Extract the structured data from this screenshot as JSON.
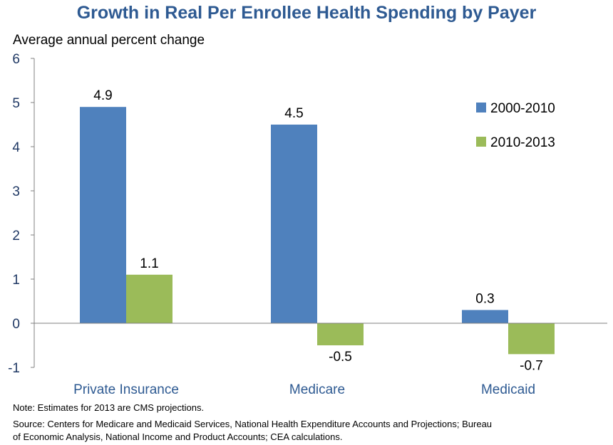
{
  "chart_data": {
    "type": "bar",
    "title": "Growth in Real Per Enrollee Health Spending by Payer",
    "ylabel": "Average annual percent change",
    "xlabel": "",
    "categories": [
      "Private Insurance",
      "Medicare",
      "Medicaid"
    ],
    "series": [
      {
        "name": "2000-2010",
        "color": "#4f81bd",
        "values": [
          4.9,
          4.5,
          0.3
        ],
        "labels": [
          "4.9",
          "4.5",
          "0.3"
        ]
      },
      {
        "name": "2010-2013",
        "color": "#9bbb59",
        "values": [
          1.1,
          -0.5,
          -0.7
        ],
        "labels": [
          "1.1",
          "-0.5",
          "-0.7"
        ]
      }
    ],
    "ylim": [
      -1,
      6
    ],
    "yticks": [
      -1,
      0,
      1,
      2,
      3,
      4,
      5,
      6
    ],
    "grid": false,
    "legend_position": "right"
  },
  "notes": {
    "note": "Note: Estimates for 2013 are CMS projections.",
    "source_line1": "Source: Centers for Medicare and Medicaid Services, National Health Expenditure Accounts and Projections; Bureau",
    "source_line2": "of Economic Analysis, National Income and Product Accounts; CEA calculations."
  }
}
